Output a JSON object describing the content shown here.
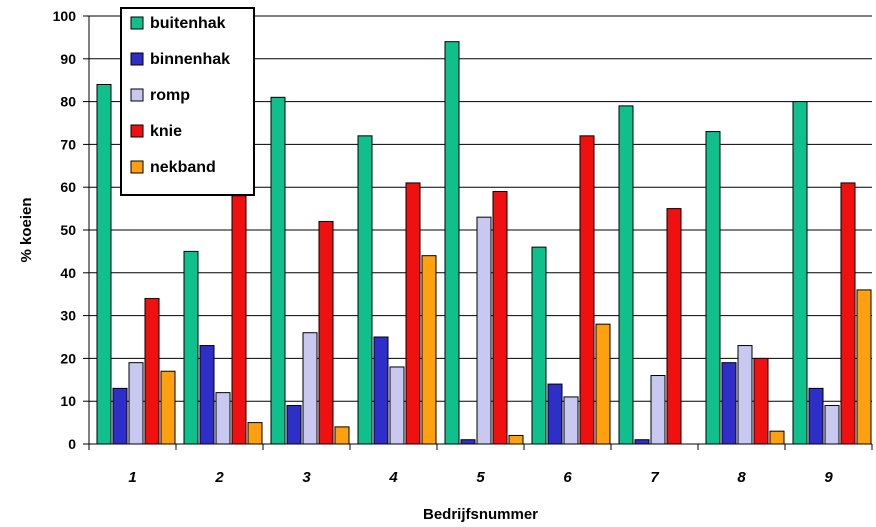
{
  "chart_data": {
    "type": "bar",
    "xlabel": "Bedrijfsnummer",
    "ylabel": "% koeien",
    "ylim": [
      0,
      100
    ],
    "yticks": [
      0,
      10,
      20,
      30,
      40,
      50,
      60,
      70,
      80,
      90,
      100
    ],
    "grid": true,
    "legend_position": "top-left",
    "categories": [
      "1",
      "2",
      "3",
      "4",
      "5",
      "6",
      "7",
      "8",
      "9"
    ],
    "series": [
      {
        "name": "buitenhak",
        "color": "#10C08C",
        "values": [
          84,
          45,
          81,
          72,
          94,
          46,
          79,
          73,
          80
        ]
      },
      {
        "name": "binnenhak",
        "color": "#2E2EC8",
        "values": [
          13,
          23,
          9,
          25,
          1,
          14,
          1,
          19,
          13
        ]
      },
      {
        "name": "romp",
        "color": "#C8C8F0",
        "values": [
          19,
          12,
          26,
          18,
          53,
          11,
          16,
          23,
          9
        ]
      },
      {
        "name": "knie",
        "color": "#F01010",
        "values": [
          34,
          58,
          52,
          61,
          59,
          72,
          55,
          20,
          61
        ]
      },
      {
        "name": "nekband",
        "color": "#FFA010",
        "values": [
          17,
          5,
          4,
          44,
          2,
          28,
          0,
          3,
          36
        ]
      }
    ]
  }
}
